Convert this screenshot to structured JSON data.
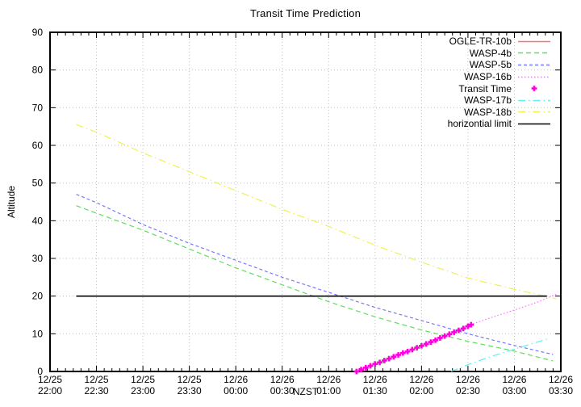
{
  "chart_data": {
    "type": "line",
    "title": "Transit Time Prediction",
    "xlabel": "NZST",
    "ylabel": "Altitude",
    "ylim": [
      0,
      90
    ],
    "ytick_step": 10,
    "xlim_minutes": [
      0,
      330
    ],
    "minor_tick_minutes": 5,
    "grid": true,
    "legend_position": "top-right-inside",
    "x_ticks": [
      {
        "t": 0,
        "date": "12/25",
        "time": "22:00"
      },
      {
        "t": 30,
        "date": "12/25",
        "time": "22:30"
      },
      {
        "t": 60,
        "date": "12/25",
        "time": "23:00"
      },
      {
        "t": 90,
        "date": "12/25",
        "time": "23:30"
      },
      {
        "t": 120,
        "date": "12/26",
        "time": "00:00"
      },
      {
        "t": 150,
        "date": "12/26",
        "time": "00:30"
      },
      {
        "t": 180,
        "date": "12/26",
        "time": "01:00"
      },
      {
        "t": 210,
        "date": "12/26",
        "time": "01:30"
      },
      {
        "t": 240,
        "date": "12/26",
        "time": "02:00"
      },
      {
        "t": 270,
        "date": "12/26",
        "time": "02:30"
      },
      {
        "t": 300,
        "date": "12/26",
        "time": "03:00"
      },
      {
        "t": 330,
        "date": "12/26",
        "time": "03:30"
      }
    ],
    "series": [
      {
        "name": "OGLE-TR-10b",
        "color": "#ff7070",
        "style": "solid",
        "points": []
      },
      {
        "name": "WASP-4b",
        "color": "#60dd60",
        "style": "dashed",
        "points": [
          [
            17,
            44
          ],
          [
            30,
            42
          ],
          [
            60,
            37.5
          ],
          [
            90,
            32.5
          ],
          [
            120,
            27.5
          ],
          [
            150,
            23
          ],
          [
            180,
            18.5
          ],
          [
            210,
            14.5
          ],
          [
            240,
            11
          ],
          [
            270,
            8
          ],
          [
            300,
            5.4
          ],
          [
            325,
            2.8
          ]
        ]
      },
      {
        "name": "WASP-5b",
        "color": "#7878ff",
        "style": "dashed-fine",
        "points": [
          [
            17,
            47
          ],
          [
            30,
            44.8
          ],
          [
            60,
            39
          ],
          [
            90,
            34
          ],
          [
            120,
            29.5
          ],
          [
            150,
            25
          ],
          [
            180,
            21
          ],
          [
            210,
            17
          ],
          [
            240,
            13.5
          ],
          [
            270,
            10
          ],
          [
            300,
            6.9
          ],
          [
            325,
            4.5
          ]
        ]
      },
      {
        "name": "WASP-16b",
        "color": "#ff70ff",
        "style": "dotted",
        "points": [
          [
            198,
            0
          ],
          [
            210,
            2
          ],
          [
            225,
            4.4
          ],
          [
            240,
            6.8
          ],
          [
            255,
            9.4
          ],
          [
            270,
            12.2
          ],
          [
            285,
            14.3
          ],
          [
            300,
            16.3
          ],
          [
            315,
            18.4
          ],
          [
            327,
            20.5
          ]
        ]
      },
      {
        "name": "Transit Time",
        "color": "#ff00dd",
        "style": "markers",
        "points": [
          [
            198,
            0
          ],
          [
            201,
            0.5
          ],
          [
            204,
            1
          ],
          [
            207,
            1.5
          ],
          [
            210,
            2
          ],
          [
            213,
            2.4
          ],
          [
            216,
            2.9
          ],
          [
            219,
            3.4
          ],
          [
            222,
            3.9
          ],
          [
            225,
            4.4
          ],
          [
            228,
            4.9
          ],
          [
            231,
            5.3
          ],
          [
            234,
            5.8
          ],
          [
            237,
            6.3
          ],
          [
            240,
            6.8
          ],
          [
            243,
            7.3
          ],
          [
            246,
            7.8
          ],
          [
            249,
            8.3
          ],
          [
            252,
            8.9
          ],
          [
            255,
            9.4
          ],
          [
            258,
            9.9
          ],
          [
            261,
            10.4
          ],
          [
            264,
            10.9
          ],
          [
            267,
            11.4
          ],
          [
            270,
            12
          ],
          [
            272,
            12.4
          ]
        ]
      },
      {
        "name": "WASP-17b",
        "color": "#60f0f0",
        "style": "dash-dot",
        "points": [
          [
            259,
            0
          ],
          [
            270,
            1.8
          ],
          [
            285,
            4
          ],
          [
            300,
            5.9
          ],
          [
            310,
            7.2
          ],
          [
            321,
            8.6
          ]
        ]
      },
      {
        "name": "WASP-18b",
        "color": "#f0f050",
        "style": "dash-dot",
        "points": [
          [
            17,
            65.5
          ],
          [
            30,
            63.5
          ],
          [
            60,
            58
          ],
          [
            90,
            53
          ],
          [
            120,
            48
          ],
          [
            150,
            43
          ],
          [
            180,
            38.5
          ],
          [
            210,
            33.5
          ],
          [
            240,
            29
          ],
          [
            270,
            24.8
          ],
          [
            300,
            21.8
          ],
          [
            327,
            19.3
          ]
        ]
      },
      {
        "name": "horizontial limit",
        "color": "#000000",
        "style": "solid",
        "points": [
          [
            17,
            20
          ],
          [
            321,
            20
          ]
        ]
      }
    ]
  },
  "colors": {
    "background": "#ffffff",
    "grid": "#c0c0c0",
    "axis": "#000000",
    "transit_marker": "#ff00dd"
  }
}
